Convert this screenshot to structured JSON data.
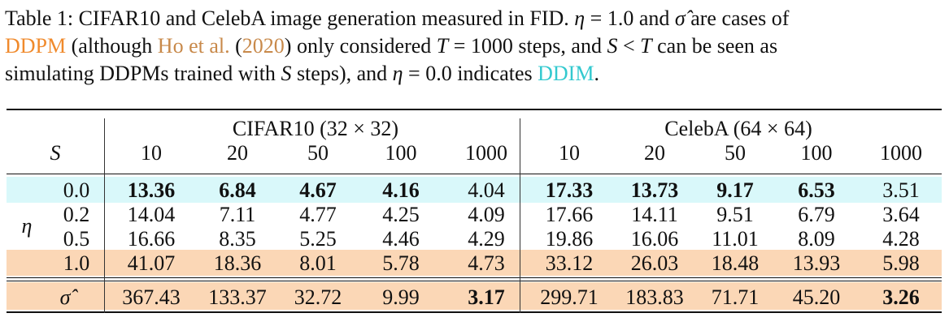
{
  "caption": {
    "line1_a": "Table 1: CIFAR10 and CelebA image generation measured in FID. ",
    "eta_sym": "η",
    "eq1": " = 1.0 and ",
    "sigma_hat": "σ̂",
    "line1_b": " are cases of",
    "ddpm": "DDPM",
    "line2_a": " (although ",
    "cite_author": "Ho et al.",
    "cite_open": " (",
    "cite_year": "2020",
    "cite_close": ")",
    "line2_b": " only considered ",
    "T_sym": "T",
    "eq2": " = 1000 steps, and ",
    "S_sym": "S",
    "lt": " < ",
    "T_sym2": "T",
    "line2_c": " can be seen as",
    "line3_a": "simulating DDPMs trained with ",
    "S_sym2": "S",
    "line3_b": " steps), and ",
    "eta_sym2": "η",
    "eq3": " = 0.0 indicates ",
    "ddim": "DDIM",
    "period": "."
  },
  "colors": {
    "ddim_band": "#d9f8fa",
    "ddpm_band": "#fbd7b6",
    "ddpm_text": "#f08a2c",
    "cite_text": "#c8894a",
    "ddim_text": "#33c9cf"
  },
  "table": {
    "groups": [
      "CIFAR10 (32 × 32)",
      "CelebA (64 × 64)"
    ],
    "s_label": "S",
    "eta_label": "η",
    "steps": [
      "10",
      "20",
      "50",
      "100",
      "1000",
      "10",
      "20",
      "50",
      "100",
      "1000"
    ],
    "rows": [
      {
        "label": "0.0",
        "values": [
          "13.36",
          "6.84",
          "4.67",
          "4.16",
          "4.04",
          "17.33",
          "13.73",
          "9.17",
          "6.53",
          "3.51"
        ],
        "bold": [
          true,
          true,
          true,
          true,
          false,
          true,
          true,
          true,
          true,
          false
        ]
      },
      {
        "label": "0.2",
        "values": [
          "14.04",
          "7.11",
          "4.77",
          "4.25",
          "4.09",
          "17.66",
          "14.11",
          "9.51",
          "6.79",
          "3.64"
        ],
        "bold": [
          false,
          false,
          false,
          false,
          false,
          false,
          false,
          false,
          false,
          false
        ]
      },
      {
        "label": "0.5",
        "values": [
          "16.66",
          "8.35",
          "5.25",
          "4.46",
          "4.29",
          "19.86",
          "16.06",
          "11.01",
          "8.09",
          "4.28"
        ],
        "bold": [
          false,
          false,
          false,
          false,
          false,
          false,
          false,
          false,
          false,
          false
        ]
      },
      {
        "label": "1.0",
        "values": [
          "41.07",
          "18.36",
          "8.01",
          "5.78",
          "4.73",
          "33.12",
          "26.03",
          "18.48",
          "13.93",
          "5.98"
        ],
        "bold": [
          false,
          false,
          false,
          false,
          false,
          false,
          false,
          false,
          false,
          false
        ]
      }
    ],
    "sigma_row": {
      "label": "σ̂",
      "values": [
        "367.43",
        "133.37",
        "32.72",
        "9.99",
        "3.17",
        "299.71",
        "183.83",
        "71.71",
        "45.20",
        "3.26"
      ],
      "bold": [
        false,
        false,
        false,
        false,
        true,
        false,
        false,
        false,
        false,
        true
      ]
    }
  }
}
